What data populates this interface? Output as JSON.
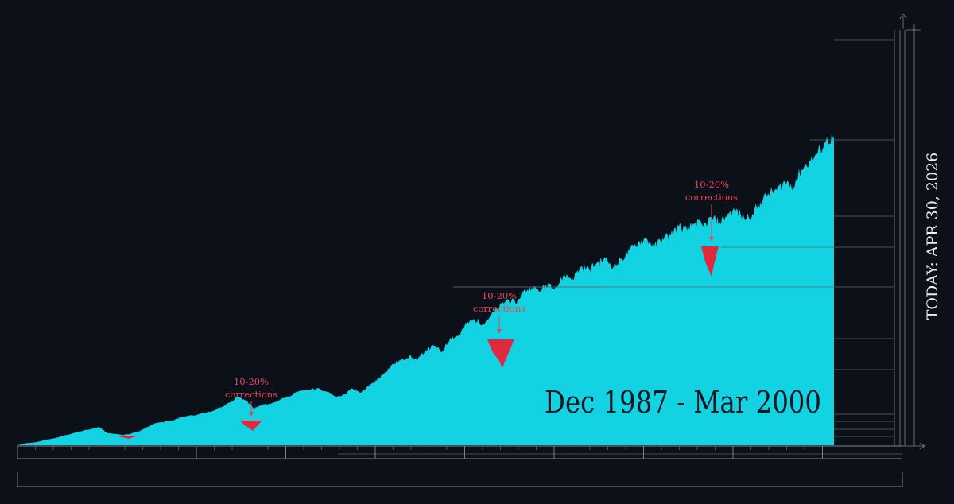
{
  "colors": {
    "background": "#0c1119",
    "area": "#13d3e3",
    "correction": "#e0283f",
    "annotation": "#e8455a",
    "rule": "#5a6470",
    "axis": "#7b8590",
    "text_dark": "#0b1520",
    "text_light": "#e9edf1"
  },
  "chart_data": {
    "type": "area",
    "title": "",
    "period_label": "Dec 1987 - Mar 2000",
    "today_label": "TODAY: APR 30, 2026",
    "x_range": [
      0,
      100
    ],
    "y_range": [
      0,
      100
    ],
    "series": [
      {
        "values": [
          [
            0,
            0
          ],
          [
            4,
            1.5
          ],
          [
            8,
            3.5
          ],
          [
            10,
            4.5
          ],
          [
            11,
            3
          ],
          [
            13,
            2.5
          ],
          [
            15,
            3.5
          ],
          [
            17,
            5.5
          ],
          [
            19,
            6
          ],
          [
            20,
            7
          ],
          [
            22,
            7.5
          ],
          [
            24,
            8.5
          ],
          [
            26,
            10.5
          ],
          [
            27,
            12
          ],
          [
            28,
            11
          ],
          [
            29,
            9
          ],
          [
            30,
            10
          ],
          [
            31,
            10.2
          ],
          [
            33,
            12
          ],
          [
            35,
            13.5
          ],
          [
            37,
            14
          ],
          [
            39,
            12
          ],
          [
            40,
            12.5
          ],
          [
            41,
            14
          ],
          [
            42,
            13
          ],
          [
            43,
            14.5
          ],
          [
            44,
            16
          ],
          [
            45,
            18
          ],
          [
            46,
            20
          ],
          [
            47,
            21
          ],
          [
            48,
            22
          ],
          [
            49,
            21
          ],
          [
            50,
            23.5
          ],
          [
            51,
            24.5
          ],
          [
            52,
            23
          ],
          [
            53,
            26.5
          ],
          [
            54,
            27
          ],
          [
            55,
            30
          ],
          [
            56,
            31
          ],
          [
            57,
            30
          ],
          [
            58,
            32
          ],
          [
            59,
            34
          ],
          [
            60,
            36
          ],
          [
            61,
            35
          ],
          [
            62,
            38
          ],
          [
            63,
            39
          ],
          [
            64,
            38
          ],
          [
            65,
            40
          ],
          [
            66,
            39
          ],
          [
            67,
            42
          ],
          [
            68,
            41
          ],
          [
            69,
            44
          ],
          [
            70,
            43.5
          ],
          [
            71,
            45
          ],
          [
            72,
            46
          ],
          [
            73,
            44
          ],
          [
            74,
            46
          ],
          [
            75,
            48
          ],
          [
            76,
            50
          ],
          [
            77,
            51
          ],
          [
            78,
            49
          ],
          [
            79,
            51
          ],
          [
            80,
            52
          ],
          [
            81,
            54
          ],
          [
            82,
            53
          ],
          [
            83,
            55
          ],
          [
            84,
            54
          ],
          [
            85,
            56
          ],
          [
            86,
            55
          ],
          [
            87,
            57
          ],
          [
            88,
            58
          ],
          [
            89,
            56
          ],
          [
            90,
            57
          ],
          [
            91,
            60
          ],
          [
            92,
            62
          ],
          [
            93,
            63
          ],
          [
            94,
            65
          ],
          [
            95,
            64
          ],
          [
            96,
            68
          ],
          [
            97,
            70
          ],
          [
            98,
            72
          ],
          [
            99,
            75
          ],
          [
            100,
            76
          ]
        ]
      }
    ],
    "annotations": [
      {
        "text_line1": "10-20%",
        "text_line2": "corrections"
      },
      {
        "text_line1": "10-20%",
        "text_line2": "corrections"
      },
      {
        "text_line1": "10-20%",
        "text_line2": "corrections"
      }
    ]
  }
}
